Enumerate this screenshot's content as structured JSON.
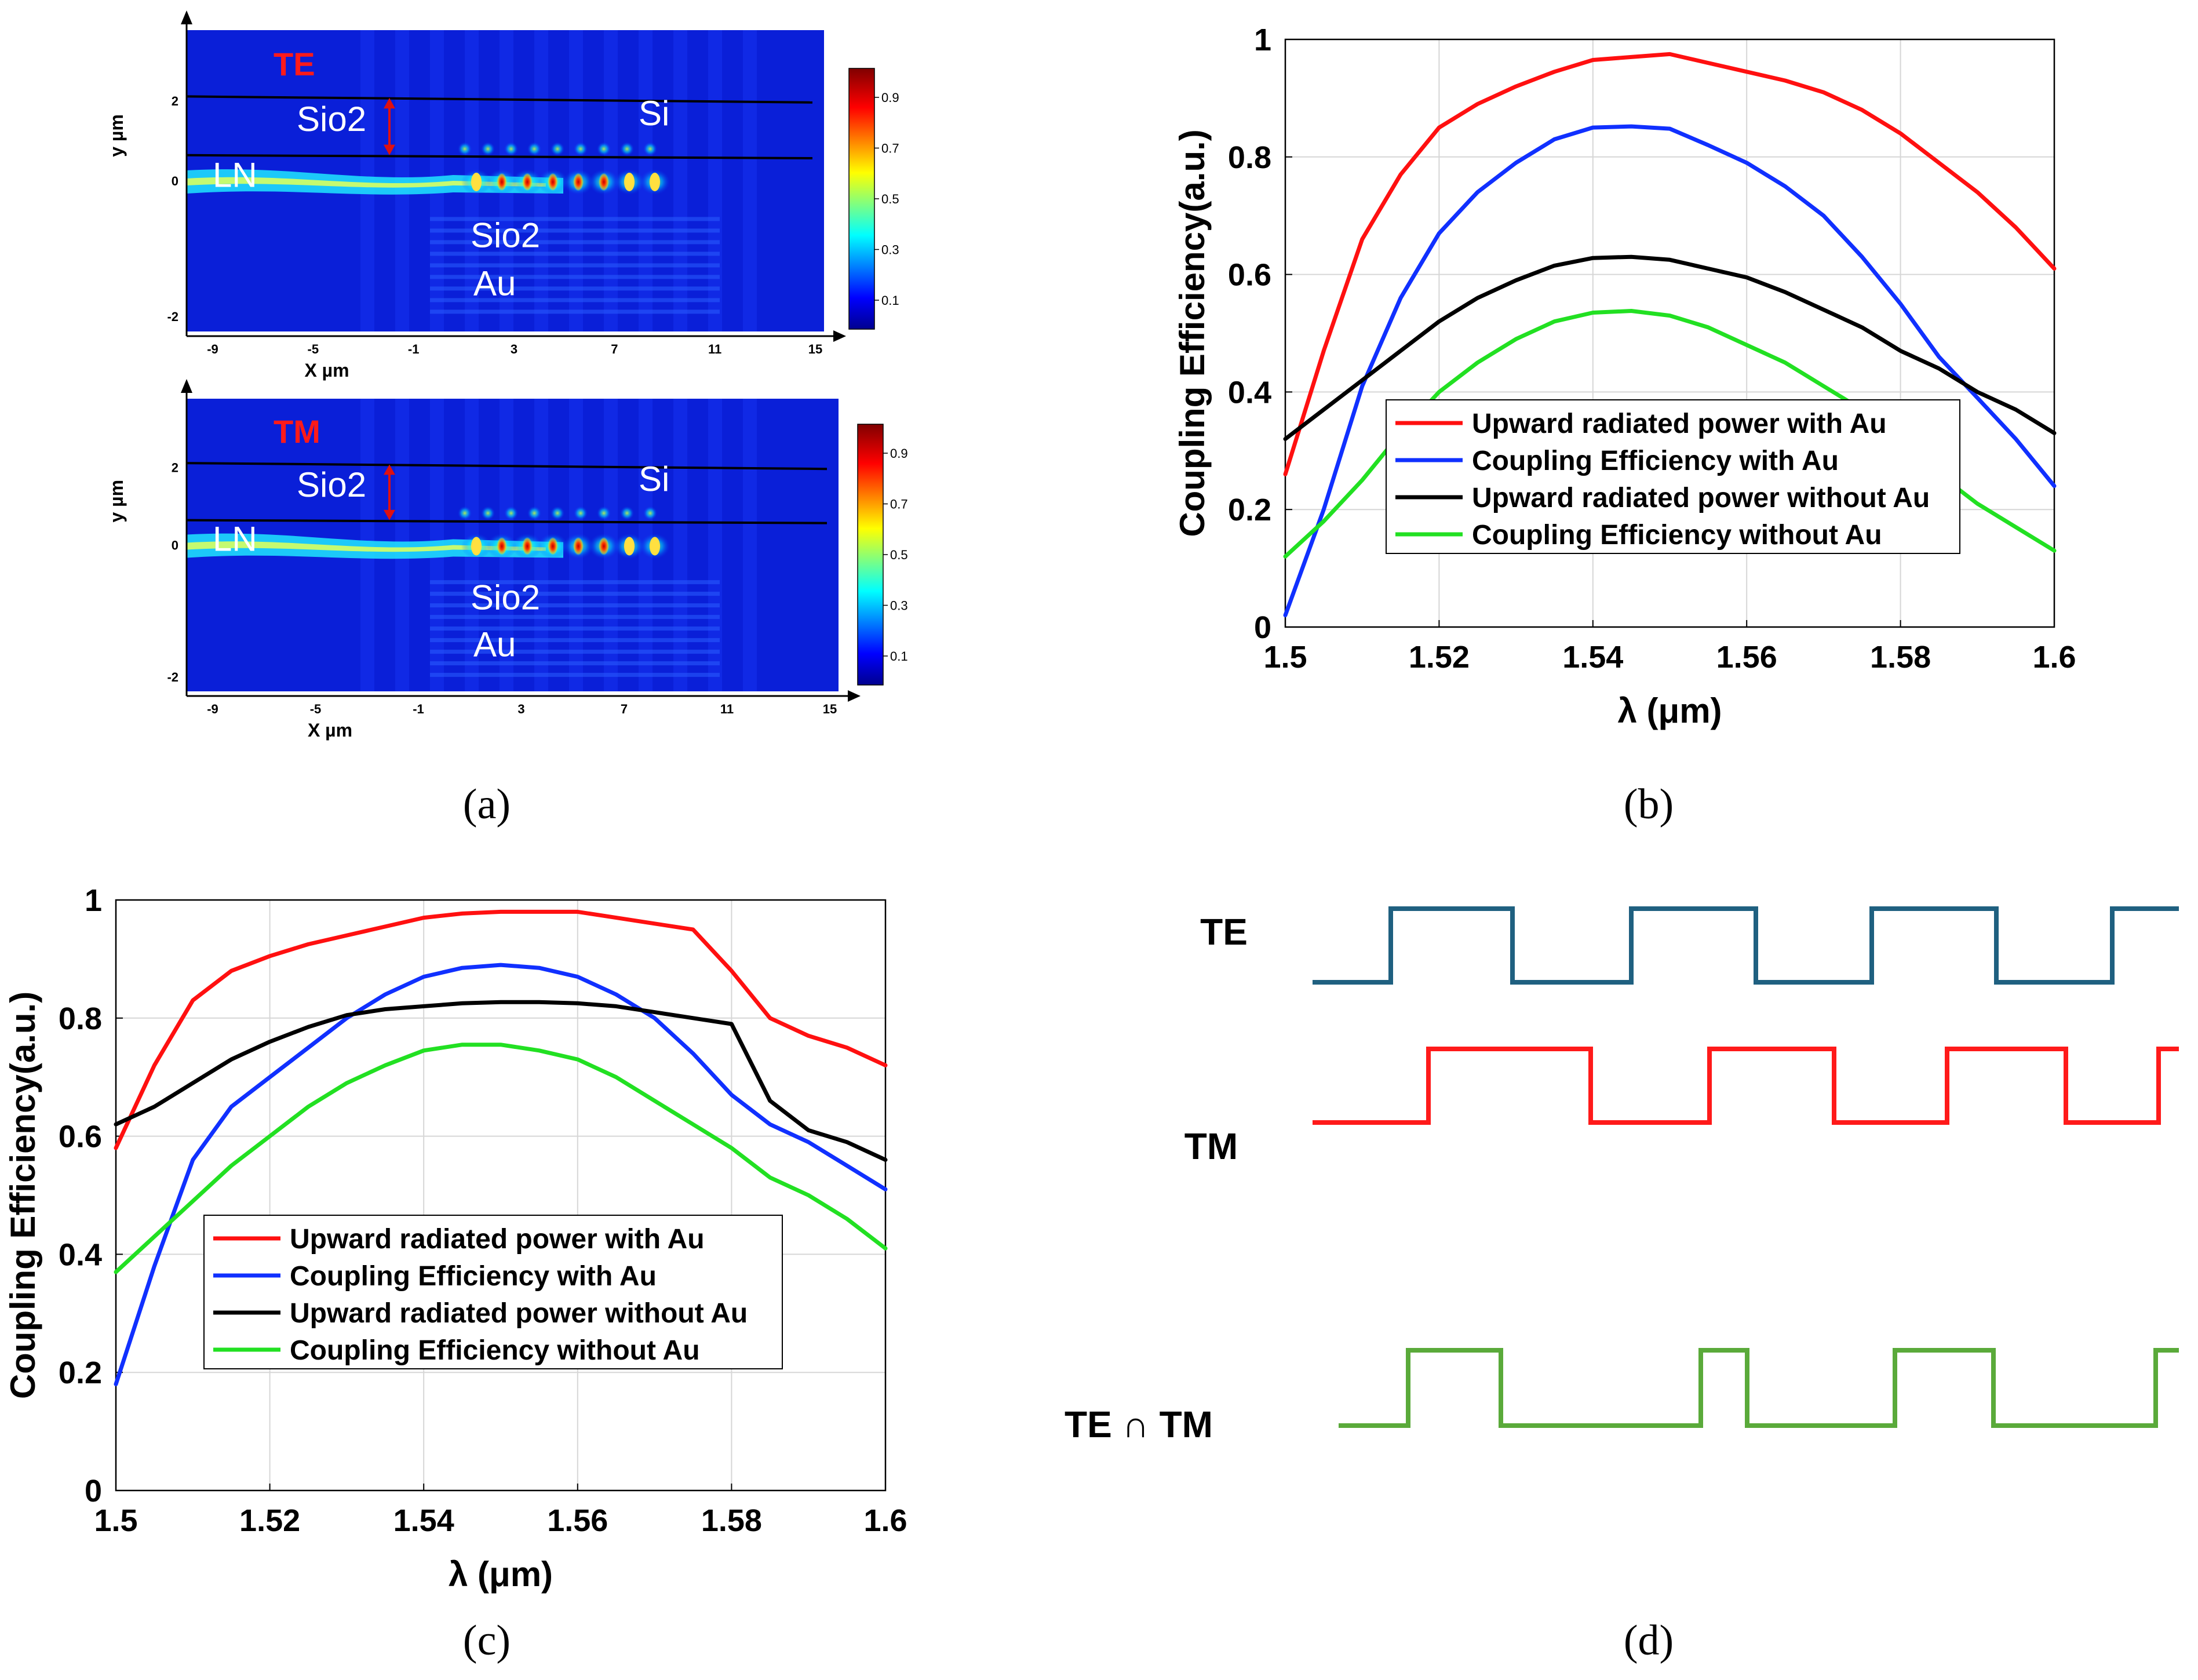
{
  "colors": {
    "red": "#ff1010",
    "blue": "#1030ff",
    "black": "#000000",
    "green": "#22e022",
    "te_wave": "#1f6080",
    "tm_wave": "#ff1a1a",
    "and_wave": "#5aaa3a"
  },
  "field_maps": {
    "caption": "(a)",
    "x_label": "X µm",
    "y_label": "y µm",
    "x_ticks": [
      "-9",
      "-5",
      "-1",
      "3",
      "7",
      "11",
      "15"
    ],
    "y_ticks": [
      "2",
      "0",
      "-2"
    ],
    "colorbar_ticks": [
      "0.9",
      "0.7",
      "0.5",
      "0.3",
      "0.1"
    ],
    "maps": [
      {
        "mode": "TE",
        "labels": {
          "sio2_top": "Sio2",
          "si": "Si",
          "ln": "LN",
          "sio2_bottom": "Sio2",
          "au": "Au"
        }
      },
      {
        "mode": "TM",
        "labels": {
          "sio2_top": "Sio2",
          "si": "Si",
          "ln": "LN",
          "sio2_bottom": "Sio2",
          "au": "Au"
        }
      }
    ]
  },
  "chart_data": [
    {
      "id": "b",
      "type": "line",
      "caption": "(b)",
      "title": "",
      "xlabel": "λ (μm)",
      "ylabel": "Coupling Efficiency(a.u.)",
      "xlim": [
        1.5,
        1.6
      ],
      "ylim": [
        0,
        1
      ],
      "grid": true,
      "legend_position": "center-right",
      "xticks": [
        "1.5",
        "1.52",
        "1.54",
        "1.56",
        "1.58",
        "1.6"
      ],
      "yticks": [
        "0",
        "0.2",
        "0.4",
        "0.6",
        "0.8",
        "1"
      ],
      "x": [
        1.5,
        1.505,
        1.51,
        1.515,
        1.52,
        1.525,
        1.53,
        1.535,
        1.54,
        1.545,
        1.55,
        1.555,
        1.56,
        1.565,
        1.57,
        1.575,
        1.58,
        1.585,
        1.59,
        1.595,
        1.6
      ],
      "series": [
        {
          "name": "Upward radiated power with Au",
          "color": "#ff1010",
          "values": [
            0.26,
            0.47,
            0.66,
            0.77,
            0.85,
            0.89,
            0.92,
            0.945,
            0.965,
            0.97,
            0.975,
            0.96,
            0.945,
            0.93,
            0.91,
            0.88,
            0.84,
            0.79,
            0.74,
            0.68,
            0.61
          ]
        },
        {
          "name": "Coupling Efficiency with Au",
          "color": "#1030ff",
          "values": [
            0.02,
            0.2,
            0.41,
            0.56,
            0.67,
            0.74,
            0.79,
            0.83,
            0.85,
            0.852,
            0.848,
            0.82,
            0.79,
            0.75,
            0.7,
            0.63,
            0.55,
            0.46,
            0.39,
            0.32,
            0.24
          ]
        },
        {
          "name": "Upward radiated power without Au",
          "color": "#000000",
          "values": [
            0.32,
            0.37,
            0.42,
            0.47,
            0.52,
            0.56,
            0.59,
            0.615,
            0.628,
            0.63,
            0.625,
            0.61,
            0.595,
            0.57,
            0.54,
            0.51,
            0.47,
            0.44,
            0.4,
            0.37,
            0.33
          ]
        },
        {
          "name": "Coupling Efficiency without Au",
          "color": "#22e022",
          "values": [
            0.12,
            0.18,
            0.25,
            0.33,
            0.4,
            0.45,
            0.49,
            0.52,
            0.535,
            0.538,
            0.53,
            0.51,
            0.48,
            0.45,
            0.41,
            0.37,
            0.31,
            0.26,
            0.21,
            0.17,
            0.13
          ]
        }
      ]
    },
    {
      "id": "c",
      "type": "line",
      "caption": "(c)",
      "title": "",
      "xlabel": "λ (μm)",
      "ylabel": "Coupling Efficiency(a.u.)",
      "xlim": [
        1.5,
        1.6
      ],
      "ylim": [
        0,
        1
      ],
      "grid": true,
      "legend_position": "lower-center",
      "xticks": [
        "1.5",
        "1.52",
        "1.54",
        "1.56",
        "1.58",
        "1.6"
      ],
      "yticks": [
        "0",
        "0.2",
        "0.4",
        "0.6",
        "0.8",
        "1"
      ],
      "x": [
        1.5,
        1.505,
        1.51,
        1.515,
        1.52,
        1.525,
        1.53,
        1.535,
        1.54,
        1.545,
        1.55,
        1.555,
        1.56,
        1.565,
        1.57,
        1.575,
        1.58,
        1.585,
        1.59,
        1.595,
        1.6
      ],
      "series": [
        {
          "name": "Upward radiated power with Au",
          "color": "#ff1010",
          "values": [
            0.58,
            0.72,
            0.83,
            0.88,
            0.905,
            0.925,
            0.94,
            0.955,
            0.97,
            0.977,
            0.98,
            0.98,
            0.98,
            0.97,
            0.96,
            0.95,
            0.88,
            0.8,
            0.77,
            0.75,
            0.72
          ]
        },
        {
          "name": "Coupling Efficiency with Au",
          "color": "#1030ff",
          "values": [
            0.18,
            0.38,
            0.56,
            0.65,
            0.7,
            0.75,
            0.8,
            0.84,
            0.87,
            0.885,
            0.89,
            0.885,
            0.87,
            0.84,
            0.8,
            0.74,
            0.67,
            0.62,
            0.59,
            0.55,
            0.51
          ]
        },
        {
          "name": "Upward radiated power without Au",
          "color": "#000000",
          "values": [
            0.62,
            0.65,
            0.69,
            0.73,
            0.76,
            0.785,
            0.805,
            0.815,
            0.82,
            0.825,
            0.827,
            0.827,
            0.825,
            0.82,
            0.81,
            0.8,
            0.79,
            0.66,
            0.61,
            0.59,
            0.56
          ]
        },
        {
          "name": "Coupling Efficiency without Au",
          "color": "#22e022",
          "values": [
            0.37,
            0.43,
            0.49,
            0.55,
            0.6,
            0.65,
            0.69,
            0.72,
            0.745,
            0.755,
            0.755,
            0.745,
            0.73,
            0.7,
            0.66,
            0.62,
            0.58,
            0.53,
            0.5,
            0.46,
            0.41
          ]
        }
      ]
    }
  ],
  "logic": {
    "caption": "(d)",
    "waves": [
      {
        "label": "TE",
        "color": "#1f6080",
        "pattern": [
          0,
          1,
          0,
          1,
          0,
          1,
          0,
          1
        ]
      },
      {
        "label": "TM",
        "color": "#ff1a1a",
        "pattern": [
          0,
          1,
          0,
          1,
          0,
          1,
          0,
          1
        ]
      },
      {
        "label": "TE ∩ TM",
        "color": "#5aaa3a",
        "pattern": [
          0,
          1,
          0,
          1,
          0,
          1,
          0,
          1
        ]
      }
    ]
  }
}
